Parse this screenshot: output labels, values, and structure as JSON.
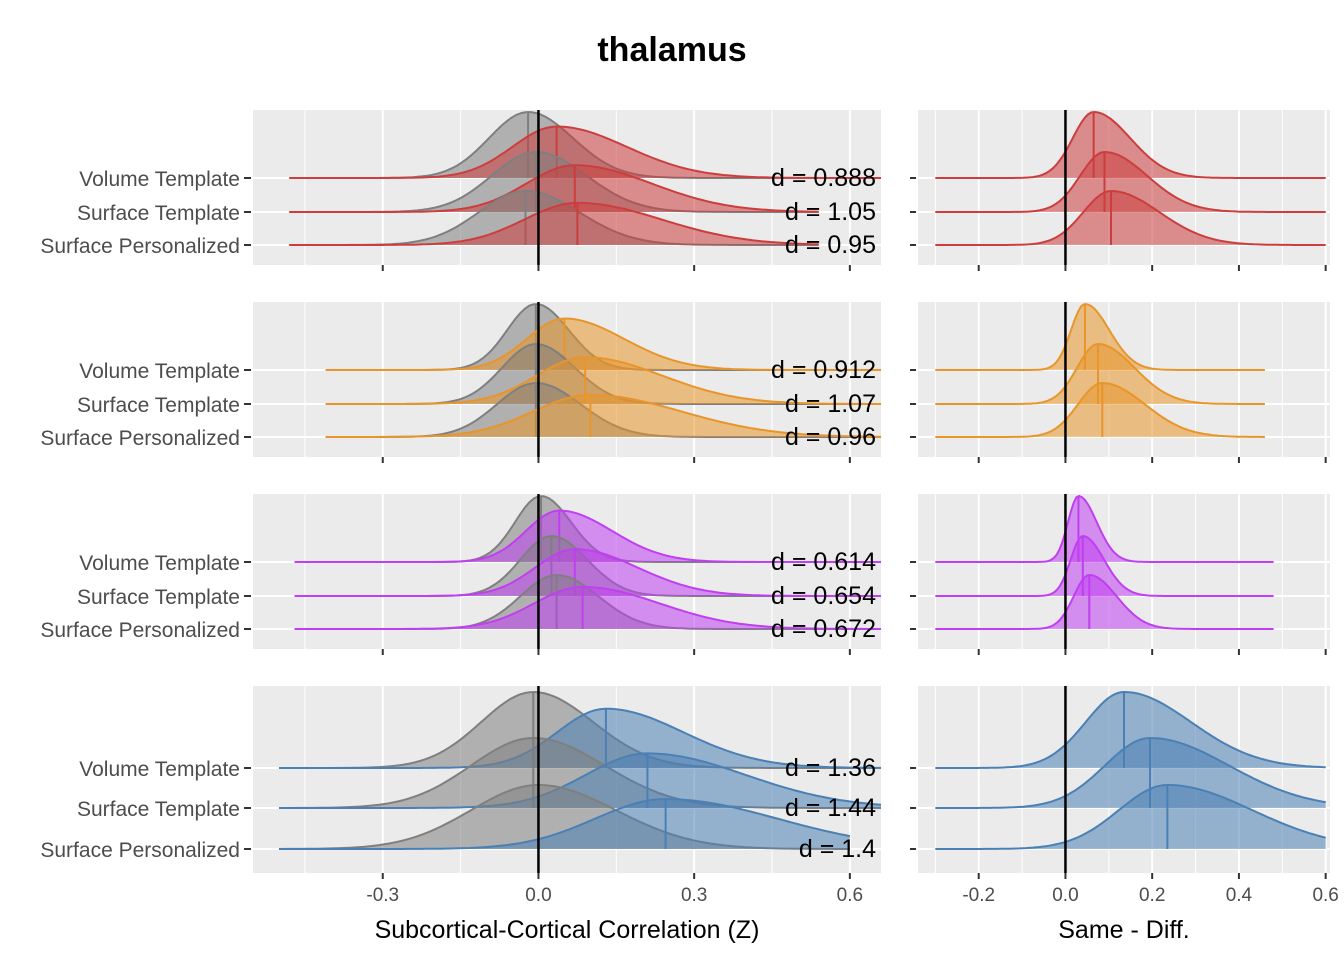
{
  "title": "thalamus",
  "chart_data": {
    "type": "ridgeline density",
    "title": "thalamus",
    "categories": [
      "Volume Template",
      "Surface Template",
      "Surface Personalized"
    ],
    "left": {
      "xlabel": "Subcortical-Cortical Correlation (Z)",
      "xticks": [
        -0.3,
        0.0,
        0.3,
        0.6
      ],
      "tick_labels": [
        "-0.3",
        "0.0",
        "0.3",
        "0.6"
      ],
      "xlim": [
        -0.55,
        0.66
      ],
      "vline": 0
    },
    "right": {
      "xlabel": "Same - Diff.",
      "xticks": [
        -0.2,
        0.0,
        0.2,
        0.4,
        0.6
      ],
      "tick_labels": [
        "-0.2",
        "0.0",
        "0.2",
        "0.4",
        "0.6"
      ],
      "xlim": [
        -0.34,
        0.61
      ],
      "vline": 0
    },
    "grey_color": "#7f7f7f",
    "panels": [
      {
        "color": "#cc3e3e",
        "rows": [
          {
            "group": "Volume Template",
            "diff_median": -0.02,
            "same_median": 0.035,
            "diff_sd": 0.075,
            "same_sd": 0.1,
            "d_label": "d = 0.888",
            "gap_median": 0.065,
            "gap_sd": 0.06,
            "x_range": [
              -0.48,
              0.66
            ],
            "gap_range": [
              -0.3,
              0.6
            ]
          },
          {
            "group": "Surface Template",
            "diff_median": -0.005,
            "same_median": 0.07,
            "diff_sd": 0.085,
            "same_sd": 0.11,
            "d_label": "d = 1.05",
            "gap_median": 0.09,
            "gap_sd": 0.07,
            "x_range": [
              -0.48,
              0.54
            ],
            "gap_range": [
              -0.3,
              0.6
            ]
          },
          {
            "group": "Surface Personalized",
            "diff_median": -0.025,
            "same_median": 0.075,
            "diff_sd": 0.09,
            "same_sd": 0.12,
            "d_label": "d = 0.95",
            "gap_median": 0.105,
            "gap_sd": 0.08,
            "x_range": [
              -0.48,
              0.54
            ],
            "gap_range": [
              -0.3,
              0.6
            ]
          }
        ]
      },
      {
        "color": "#e8952c",
        "rows": [
          {
            "group": "Volume Template",
            "diff_median": -0.005,
            "same_median": 0.05,
            "diff_sd": 0.055,
            "same_sd": 0.085,
            "d_label": "d = 0.912",
            "gap_median": 0.045,
            "gap_sd": 0.04,
            "x_range": [
              -0.41,
              0.66
            ],
            "gap_range": [
              -0.3,
              0.46
            ]
          },
          {
            "group": "Surface Template",
            "diff_median": -0.005,
            "same_median": 0.09,
            "diff_sd": 0.065,
            "same_sd": 0.11,
            "d_label": "d = 1.07",
            "gap_median": 0.075,
            "gap_sd": 0.06,
            "x_range": [
              -0.41,
              0.66
            ],
            "gap_range": [
              -0.3,
              0.46
            ]
          },
          {
            "group": "Surface Personalized",
            "diff_median": -0.005,
            "same_median": 0.1,
            "diff_sd": 0.075,
            "same_sd": 0.13,
            "d_label": "d = 0.96",
            "gap_median": 0.085,
            "gap_sd": 0.07,
            "x_range": [
              -0.41,
              0.66
            ],
            "gap_range": [
              -0.3,
              0.46
            ]
          }
        ]
      },
      {
        "color": "#c03ff0",
        "rows": [
          {
            "group": "Volume Template",
            "diff_median": 0.005,
            "same_median": 0.04,
            "diff_sd": 0.05,
            "same_sd": 0.075,
            "d_label": "d = 0.614",
            "gap_median": 0.03,
            "gap_sd": 0.03,
            "x_range": [
              -0.47,
              0.66
            ],
            "gap_range": [
              -0.3,
              0.48
            ]
          },
          {
            "group": "Surface Template",
            "diff_median": 0.025,
            "same_median": 0.07,
            "diff_sd": 0.06,
            "same_sd": 0.09,
            "d_label": "d = 0.654",
            "gap_median": 0.04,
            "gap_sd": 0.035,
            "x_range": [
              -0.47,
              0.66
            ],
            "gap_range": [
              -0.3,
              0.48
            ]
          },
          {
            "group": "Surface Personalized",
            "diff_median": 0.035,
            "same_median": 0.085,
            "diff_sd": 0.07,
            "same_sd": 0.11,
            "d_label": "d = 0.672",
            "gap_median": 0.055,
            "gap_sd": 0.045,
            "x_range": [
              -0.47,
              0.66
            ],
            "gap_range": [
              -0.3,
              0.48
            ]
          }
        ]
      },
      {
        "color": "#4a80b4",
        "rows": [
          {
            "group": "Volume Template",
            "diff_median": -0.01,
            "same_median": 0.13,
            "diff_sd": 0.1,
            "same_sd": 0.11,
            "d_label": "d = 1.36",
            "gap_median": 0.135,
            "gap_sd": 0.11,
            "x_range": [
              -0.5,
              0.66
            ],
            "gap_range": [
              -0.3,
              0.6
            ]
          },
          {
            "group": "Surface Template",
            "diff_median": -0.01,
            "same_median": 0.21,
            "diff_sd": 0.12,
            "same_sd": 0.14,
            "d_label": "d = 1.44",
            "gap_median": 0.195,
            "gap_sd": 0.13,
            "x_range": [
              -0.5,
              0.66
            ],
            "gap_range": [
              -0.3,
              0.6
            ]
          },
          {
            "group": "Surface Personalized",
            "diff_median": 0.0,
            "same_median": 0.245,
            "diff_sd": 0.13,
            "same_sd": 0.16,
            "d_label": "d = 1.4",
            "gap_median": 0.235,
            "gap_sd": 0.14,
            "x_range": [
              -0.5,
              0.6
            ],
            "gap_range": [
              -0.3,
              0.6
            ]
          }
        ]
      }
    ]
  }
}
